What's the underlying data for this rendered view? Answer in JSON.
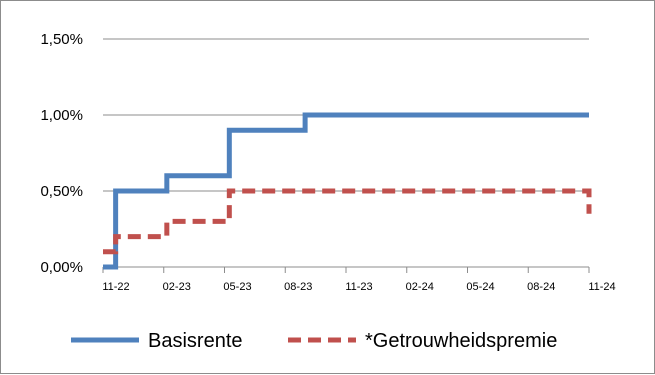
{
  "chart_data": {
    "type": "line",
    "title": "",
    "xlabel": "",
    "ylabel": "",
    "x_ticks": [
      "11-22",
      "02-23",
      "05-23",
      "08-23",
      "11-23",
      "02-24",
      "05-24",
      "08-24",
      "11-24"
    ],
    "y_ticks": [
      "0,00%",
      "0,50%",
      "1,00%",
      "1,50%"
    ],
    "ylim": [
      0,
      1.5
    ],
    "xlim": [
      "2022-11-01",
      "2024-11-01"
    ],
    "step": true,
    "grid": true,
    "legend_position": "bottom",
    "series": [
      {
        "name": "Basisrente",
        "color": "#4f81bd",
        "style": "solid",
        "points": [
          {
            "x": "2022-11-01",
            "y": 0.0
          },
          {
            "x": "2022-11-20",
            "y": 0.5
          },
          {
            "x": "2023-02-05",
            "y": 0.6
          },
          {
            "x": "2023-05-10",
            "y": 0.9
          },
          {
            "x": "2023-09-01",
            "y": 1.0
          },
          {
            "x": "2024-11-01",
            "y": 1.0
          }
        ]
      },
      {
        "name": "*Getrouwheidspremie",
        "color": "#c0504d",
        "style": "dashed",
        "points": [
          {
            "x": "2022-11-01",
            "y": 0.1
          },
          {
            "x": "2022-11-20",
            "y": 0.2
          },
          {
            "x": "2023-02-05",
            "y": 0.3
          },
          {
            "x": "2023-05-10",
            "y": 0.5
          },
          {
            "x": "2024-11-01",
            "y": 0.5
          },
          {
            "x": "2024-11-01",
            "y": 0.35
          }
        ]
      }
    ]
  }
}
